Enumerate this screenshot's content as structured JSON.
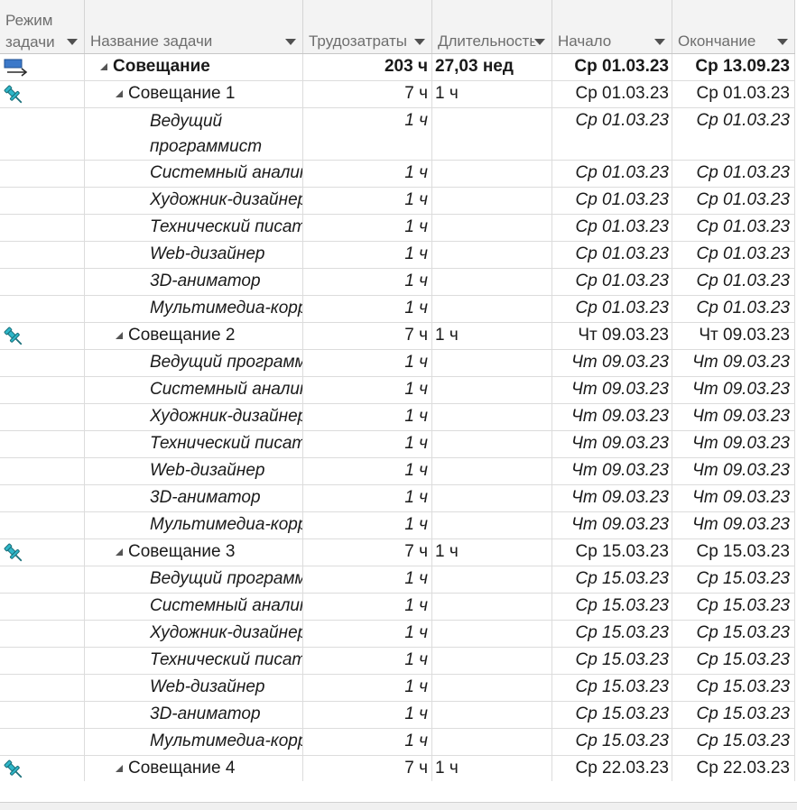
{
  "columns": {
    "mode": "Режим\nзадачи",
    "name": "Название задачи",
    "work": "Трудозатраты",
    "duration": "Длительность",
    "start": "Начало",
    "finish": "Окончание"
  },
  "rows": [
    {
      "level": 0,
      "icon": "auto-scheduled-icon",
      "name": "Совещание",
      "work": "203 ч",
      "duration": "27,03 нед",
      "start": "Ср 01.03.23",
      "finish": "Ср 13.09.23"
    },
    {
      "level": 1,
      "icon": "manual-pin-icon",
      "name": "Совещание 1",
      "work": "7 ч",
      "duration": "1 ч",
      "start": "Ср 01.03.23",
      "finish": "Ср 01.03.23"
    },
    {
      "level": 2,
      "tall": true,
      "name": "Ведущий программист",
      "work": "1 ч",
      "duration": "",
      "start": "Ср 01.03.23",
      "finish": "Ср 01.03.23"
    },
    {
      "level": 2,
      "name": "Системный аналитик",
      "work": "1 ч",
      "duration": "",
      "start": "Ср 01.03.23",
      "finish": "Ср 01.03.23"
    },
    {
      "level": 2,
      "name": "Художник-дизайнер",
      "work": "1 ч",
      "duration": "",
      "start": "Ср 01.03.23",
      "finish": "Ср 01.03.23"
    },
    {
      "level": 2,
      "name": "Технический писатель",
      "work": "1 ч",
      "duration": "",
      "start": "Ср 01.03.23",
      "finish": "Ср 01.03.23"
    },
    {
      "level": 2,
      "name": "Web-дизайнер",
      "work": "1 ч",
      "duration": "",
      "start": "Ср 01.03.23",
      "finish": "Ср 01.03.23"
    },
    {
      "level": 2,
      "name": "3D-аниматор",
      "work": "1 ч",
      "duration": "",
      "start": "Ср 01.03.23",
      "finish": "Ср 01.03.23"
    },
    {
      "level": 2,
      "name": "Мультимедиа-корректор",
      "work": "1 ч",
      "duration": "",
      "start": "Ср 01.03.23",
      "finish": "Ср 01.03.23"
    },
    {
      "level": 1,
      "icon": "manual-pin-icon",
      "name": "Совещание 2",
      "work": "7 ч",
      "duration": "1 ч",
      "start": "Чт 09.03.23",
      "finish": "Чт 09.03.23"
    },
    {
      "level": 2,
      "name": "Ведущий программист",
      "work": "1 ч",
      "duration": "",
      "start": "Чт 09.03.23",
      "finish": "Чт 09.03.23"
    },
    {
      "level": 2,
      "name": "Системный аналитик",
      "work": "1 ч",
      "duration": "",
      "start": "Чт 09.03.23",
      "finish": "Чт 09.03.23"
    },
    {
      "level": 2,
      "name": "Художник-дизайнер",
      "work": "1 ч",
      "duration": "",
      "start": "Чт 09.03.23",
      "finish": "Чт 09.03.23"
    },
    {
      "level": 2,
      "name": "Технический писатель",
      "work": "1 ч",
      "duration": "",
      "start": "Чт 09.03.23",
      "finish": "Чт 09.03.23"
    },
    {
      "level": 2,
      "name": "Web-дизайнер",
      "work": "1 ч",
      "duration": "",
      "start": "Чт 09.03.23",
      "finish": "Чт 09.03.23"
    },
    {
      "level": 2,
      "name": "3D-аниматор",
      "work": "1 ч",
      "duration": "",
      "start": "Чт 09.03.23",
      "finish": "Чт 09.03.23"
    },
    {
      "level": 2,
      "name": "Мультимедиа-корректор",
      "work": "1 ч",
      "duration": "",
      "start": "Чт 09.03.23",
      "finish": "Чт 09.03.23"
    },
    {
      "level": 1,
      "icon": "manual-pin-icon",
      "name": "Совещание 3",
      "work": "7 ч",
      "duration": "1 ч",
      "start": "Ср 15.03.23",
      "finish": "Ср 15.03.23"
    },
    {
      "level": 2,
      "name": "Ведущий программист",
      "work": "1 ч",
      "duration": "",
      "start": "Ср 15.03.23",
      "finish": "Ср 15.03.23"
    },
    {
      "level": 2,
      "name": "Системный аналитик",
      "work": "1 ч",
      "duration": "",
      "start": "Ср 15.03.23",
      "finish": "Ср 15.03.23"
    },
    {
      "level": 2,
      "name": "Художник-дизайнер",
      "work": "1 ч",
      "duration": "",
      "start": "Ср 15.03.23",
      "finish": "Ср 15.03.23"
    },
    {
      "level": 2,
      "name": "Технический писатель",
      "work": "1 ч",
      "duration": "",
      "start": "Ср 15.03.23",
      "finish": "Ср 15.03.23"
    },
    {
      "level": 2,
      "name": "Web-дизайнер",
      "work": "1 ч",
      "duration": "",
      "start": "Ср 15.03.23",
      "finish": "Ср 15.03.23"
    },
    {
      "level": 2,
      "name": "3D-аниматор",
      "work": "1 ч",
      "duration": "",
      "start": "Ср 15.03.23",
      "finish": "Ср 15.03.23"
    },
    {
      "level": 2,
      "name": "Мультимедиа-корректор",
      "work": "1 ч",
      "duration": "",
      "start": "Ср 15.03.23",
      "finish": "Ср 15.03.23"
    },
    {
      "level": 1,
      "icon": "manual-pin-icon",
      "name": "Совещание 4",
      "work": "7 ч",
      "duration": "1 ч",
      "start": "Ср 22.03.23",
      "finish": "Ср 22.03.23"
    }
  ]
}
